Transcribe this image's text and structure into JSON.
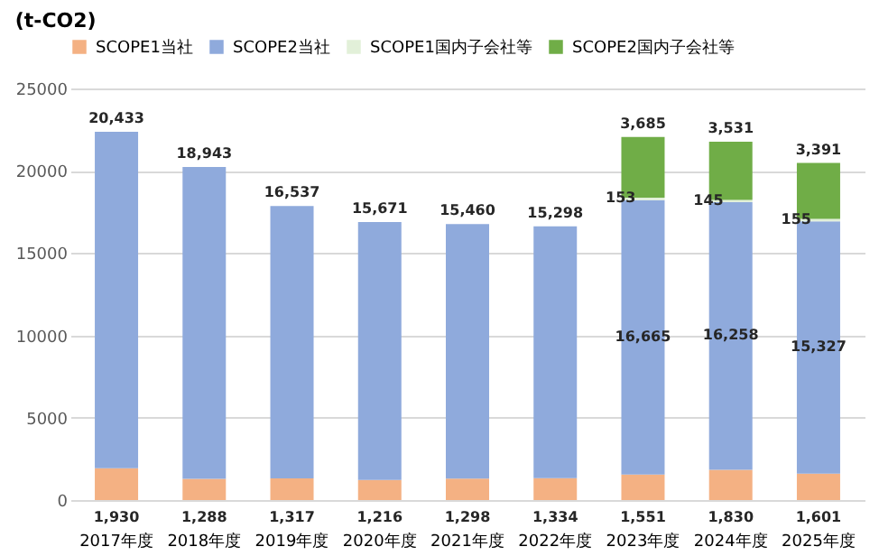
{
  "chart_data": {
    "type": "bar",
    "stacked": true,
    "title": "(t-CO2)",
    "categories": [
      "2017年度",
      "2018年度",
      "2019年度",
      "2020年度",
      "2021年度",
      "2022年度",
      "2023年度",
      "2024年度",
      "2025年度"
    ],
    "series": [
      {
        "name": "SCOPE1当社",
        "color": "#f4b183",
        "values": [
          1930,
          1288,
          1317,
          1216,
          1298,
          1334,
          1551,
          1830,
          1601
        ],
        "value_labels": [
          "1,930",
          "1,288",
          "1,317",
          "1,216",
          "1,298",
          "1,334",
          "1,551",
          "1,830",
          "1,601"
        ]
      },
      {
        "name": "SCOPE2当社",
        "color": "#8faadc",
        "values": [
          20433,
          18943,
          16537,
          15671,
          15460,
          15298,
          16665,
          16258,
          15327
        ],
        "value_labels": [
          "20,433",
          "18,943",
          "16,537",
          "15,671",
          "15,460",
          "15,298",
          "16,665",
          "16,258",
          "15,327"
        ]
      },
      {
        "name": "SCOPE1国内子会社等",
        "color": "#e2f0d9",
        "values": [
          null,
          null,
          null,
          null,
          null,
          null,
          153,
          145,
          155
        ],
        "value_labels": [
          null,
          null,
          null,
          null,
          null,
          null,
          "153",
          "145",
          "155"
        ]
      },
      {
        "name": "SCOPE2国内子会社等",
        "color": "#70ad47",
        "values": [
          null,
          null,
          null,
          null,
          null,
          null,
          3685,
          3531,
          3391
        ],
        "value_labels": [
          null,
          null,
          null,
          null,
          null,
          null,
          "3,685",
          "3,531",
          "3,391"
        ]
      }
    ],
    "ylim": [
      0,
      25000
    ],
    "yticks": [
      0,
      5000,
      10000,
      15000,
      20000,
      25000
    ],
    "grid": "y",
    "legend": "top"
  }
}
